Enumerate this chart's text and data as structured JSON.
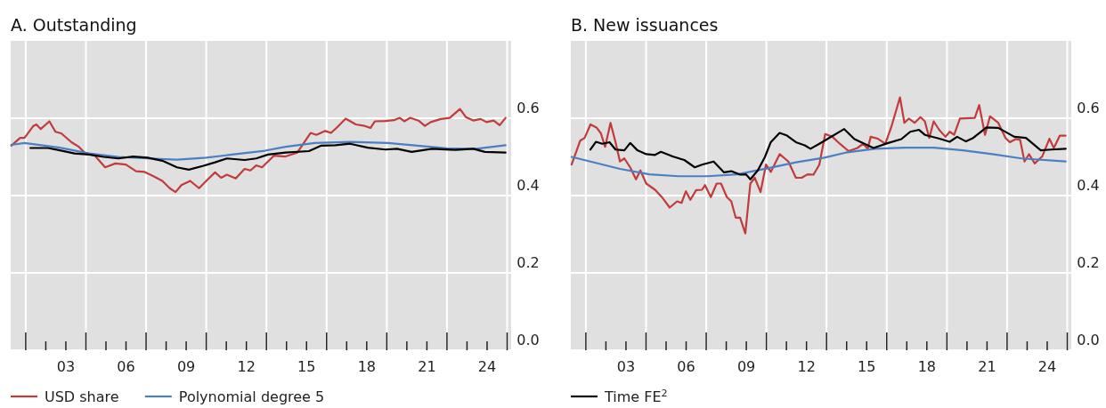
{
  "chart_data": [
    {
      "type": "line",
      "title": "A. Outstanding",
      "xlim": [
        2000.25,
        2025.2
      ],
      "ylim": [
        0,
        0.8
      ],
      "yticks": [
        {
          "value": 0,
          "label": "0.0"
        },
        0.2,
        0.4,
        0.6
      ],
      "grid": true,
      "legend": "bottom",
      "xticks": [
        {
          "value": 2001,
          "label": null
        },
        {
          "value": 2004,
          "label": null
        },
        {
          "value": 2007,
          "label": null
        },
        {
          "value": 2010,
          "label": null
        },
        {
          "value": 2013,
          "label": null
        },
        {
          "value": 2016,
          "label": null
        },
        {
          "value": 2019,
          "label": null
        },
        {
          "value": 2022,
          "label": null
        },
        {
          "value": 2025,
          "label": null
        },
        {
          "value": 2003,
          "label": "03"
        },
        {
          "value": 2006,
          "label": "06"
        },
        {
          "value": 2009,
          "label": "09"
        },
        {
          "value": 2012,
          "label": "12"
        },
        {
          "value": 2015,
          "label": "15"
        },
        {
          "value": 2018,
          "label": "18"
        },
        {
          "value": 2021,
          "label": "21"
        },
        {
          "value": 2024,
          "label": "24"
        }
      ],
      "series": [
        {
          "name": "USD share",
          "color": "#c23b3b",
          "x": [
            2000.28,
            2000.72,
            2000.94,
            2001.38,
            2001.53,
            2001.75,
            2002.18,
            2002.48,
            2002.77,
            2003.28,
            2003.65,
            2003.94,
            2004.45,
            2004.96,
            2005.47,
            2005.99,
            2006.5,
            2006.93,
            2007.37,
            2007.81,
            2008.18,
            2008.47,
            2008.76,
            2009.2,
            2009.64,
            2010,
            2010.44,
            2010.74,
            2011.03,
            2011.47,
            2011.91,
            2012.2,
            2012.49,
            2012.78,
            2013.37,
            2013.95,
            2014.54,
            2015.2,
            2015.49,
            2015.93,
            2016.22,
            2016.51,
            2016.95,
            2017.46,
            2017.9,
            2018.19,
            2018.41,
            2018.93,
            2019.36,
            2019.65,
            2019.87,
            2020.17,
            2020.61,
            2020.9,
            2021.19,
            2021.7,
            2022.14,
            2022.65,
            2022.94,
            2023.31,
            2023.68,
            2023.97,
            2024.33,
            2024.63,
            2024.92
          ],
          "values": [
            0.529,
            0.549,
            0.549,
            0.58,
            0.584,
            0.572,
            0.592,
            0.565,
            0.561,
            0.538,
            0.526,
            0.511,
            0.503,
            0.473,
            0.483,
            0.48,
            0.463,
            0.461,
            0.45,
            0.438,
            0.419,
            0.409,
            0.427,
            0.438,
            0.419,
            0.438,
            0.46,
            0.446,
            0.454,
            0.444,
            0.469,
            0.465,
            0.478,
            0.473,
            0.503,
            0.501,
            0.511,
            0.562,
            0.557,
            0.567,
            0.562,
            0.576,
            0.599,
            0.584,
            0.58,
            0.575,
            0.592,
            0.593,
            0.595,
            0.601,
            0.592,
            0.601,
            0.593,
            0.58,
            0.59,
            0.598,
            0.601,
            0.624,
            0.603,
            0.594,
            0.598,
            0.59,
            0.594,
            0.582,
            0.601
          ]
        },
        {
          "name": "Polynomial degree 5",
          "color": "#4a7fc4",
          "x": [
            2000.28,
            2000.94,
            2002.7,
            2004.16,
            2005.62,
            2007.08,
            2008.54,
            2010,
            2011.47,
            2012.93,
            2013.95,
            2015.41,
            2017.17,
            2019.07,
            2020.53,
            2021.99,
            2023.46,
            2024.92
          ],
          "values": [
            0.531,
            0.536,
            0.524,
            0.509,
            0.5,
            0.496,
            0.493,
            0.498,
            0.507,
            0.516,
            0.526,
            0.536,
            0.539,
            0.536,
            0.529,
            0.522,
            0.521,
            0.53
          ]
        },
        {
          "color": "#000000",
          "x": [
            2001.23,
            2002.11,
            2002.7,
            2003.43,
            2004.16,
            2004.89,
            2005.62,
            2006.35,
            2007.08,
            2007.81,
            2008.54,
            2009.13,
            2009.86,
            2010.44,
            2011.03,
            2011.91,
            2012.49,
            2013.08,
            2013.95,
            2015.12,
            2015.71,
            2016.44,
            2017.17,
            2018.05,
            2018.93,
            2019.51,
            2020.24,
            2021.26,
            2022.43,
            2023.31,
            2023.89,
            2024.92
          ],
          "values": [
            0.523,
            0.523,
            0.517,
            0.509,
            0.506,
            0.5,
            0.496,
            0.501,
            0.498,
            0.49,
            0.473,
            0.467,
            0.477,
            0.486,
            0.496,
            0.492,
            0.496,
            0.506,
            0.511,
            0.515,
            0.529,
            0.53,
            0.534,
            0.524,
            0.519,
            0.521,
            0.513,
            0.521,
            0.518,
            0.521,
            0.513,
            0.511
          ]
        }
      ]
    },
    {
      "type": "line",
      "title": "B. New issuances",
      "xlim": [
        2000.25,
        2025.2
      ],
      "ylim": [
        0,
        0.8
      ],
      "yticks": [
        {
          "value": 0,
          "label": "0.0"
        },
        0.2,
        0.4,
        0.6
      ],
      "grid": true,
      "legend": "bottom",
      "xticks": [
        {
          "value": 2001,
          "label": null
        },
        {
          "value": 2004,
          "label": null
        },
        {
          "value": 2007,
          "label": null
        },
        {
          "value": 2010,
          "label": null
        },
        {
          "value": 2013,
          "label": null
        },
        {
          "value": 2016,
          "label": null
        },
        {
          "value": 2019,
          "label": null
        },
        {
          "value": 2022,
          "label": null
        },
        {
          "value": 2025,
          "label": null
        },
        {
          "value": 2003,
          "label": "03"
        },
        {
          "value": 2006,
          "label": "06"
        },
        {
          "value": 2009,
          "label": "09"
        },
        {
          "value": 2012,
          "label": "12"
        },
        {
          "value": 2015,
          "label": "15"
        },
        {
          "value": 2018,
          "label": "18"
        },
        {
          "value": 2021,
          "label": "21"
        },
        {
          "value": 2024,
          "label": "24"
        }
      ],
      "series": [
        {
          "color": "#c23b3b",
          "x": [
            2000.29,
            2000.72,
            2000.94,
            2001.23,
            2001.53,
            2001.75,
            2001.96,
            2002.23,
            2002.48,
            2002.7,
            2002.92,
            2003.21,
            2003.5,
            2003.72,
            2004.01,
            2004.45,
            2004.82,
            2005.18,
            2005.55,
            2005.77,
            2005.99,
            2006.21,
            2006.5,
            2006.79,
            2006.94,
            2007.23,
            2007.52,
            2007.74,
            2008.03,
            2008.25,
            2008.47,
            2008.69,
            2008.95,
            2009.2,
            2009.42,
            2009.71,
            2009.98,
            2010.22,
            2010.66,
            2011.1,
            2011.47,
            2011.76,
            2012.05,
            2012.35,
            2012.64,
            2012.93,
            2013.29,
            2013.66,
            2014.1,
            2014.54,
            2014.83,
            2015.05,
            2015.2,
            2015.56,
            2015.93,
            2016.22,
            2016.66,
            2016.88,
            2017.1,
            2017.39,
            2017.68,
            2017.9,
            2018.12,
            2018.34,
            2018.63,
            2018.93,
            2019.14,
            2019.36,
            2019.65,
            2020.39,
            2020.61,
            2020.9,
            2021.15,
            2021.56,
            2021.92,
            2022.14,
            2022.43,
            2022.65,
            2022.87,
            2023.09,
            2023.38,
            2023.75,
            2024.11,
            2024.33,
            2024.63,
            2024.92
          ],
          "values": [
            0.48,
            0.542,
            0.549,
            0.584,
            0.576,
            0.561,
            0.526,
            0.588,
            0.538,
            0.488,
            0.496,
            0.473,
            0.442,
            0.465,
            0.431,
            0.415,
            0.394,
            0.369,
            0.385,
            0.381,
            0.411,
            0.389,
            0.414,
            0.415,
            0.427,
            0.396,
            0.431,
            0.431,
            0.396,
            0.385,
            0.343,
            0.343,
            0.302,
            0.431,
            0.446,
            0.409,
            0.48,
            0.461,
            0.507,
            0.488,
            0.446,
            0.446,
            0.455,
            0.454,
            0.48,
            0.559,
            0.552,
            0.534,
            0.515,
            0.523,
            0.534,
            0.521,
            0.552,
            0.547,
            0.534,
            0.576,
            0.654,
            0.588,
            0.599,
            0.588,
            0.603,
            0.592,
            0.549,
            0.592,
            0.569,
            0.552,
            0.565,
            0.557,
            0.599,
            0.601,
            0.634,
            0.557,
            0.605,
            0.588,
            0.549,
            0.538,
            0.546,
            0.544,
            0.488,
            0.507,
            0.483,
            0.501,
            0.547,
            0.523,
            0.555,
            0.555
          ]
        },
        {
          "color": "#4a7fc4",
          "x": [
            2000.29,
            2001.23,
            2002.7,
            2004.16,
            2005.62,
            2007.08,
            2008.54,
            2010,
            2011.47,
            2012.89,
            2013.95,
            2015.41,
            2016.88,
            2018.34,
            2019.8,
            2021.26,
            2022.72,
            2024.92
          ],
          "values": [
            0.5,
            0.488,
            0.469,
            0.455,
            0.45,
            0.45,
            0.455,
            0.47,
            0.486,
            0.498,
            0.511,
            0.521,
            0.524,
            0.524,
            0.517,
            0.507,
            0.496,
            0.488
          ]
        },
        {
          "name": "Time FE$^{2}$",
          "color": "#000000",
          "x": [
            2001.23,
            2001.5,
            2001.82,
            2002.18,
            2002.48,
            2002.92,
            2003.21,
            2003.57,
            2004.01,
            2004.45,
            2004.74,
            2005.33,
            2005.91,
            2006.43,
            2006.79,
            2007.37,
            2007.89,
            2008.25,
            2008.69,
            2008.98,
            2009.2,
            2009.57,
            2009.93,
            2010.22,
            2010.66,
            2011.03,
            2011.47,
            2011.91,
            2012.2,
            2012.64,
            2013.07,
            2013.88,
            2014.39,
            2015.34,
            2016.07,
            2016.73,
            2017.17,
            2017.61,
            2017.9,
            2018.63,
            2019.14,
            2019.51,
            2019.95,
            2020.31,
            2020.97,
            2021.56,
            2022.36,
            2022.94,
            2023.68,
            2024.19,
            2024.92
          ],
          "values": [
            0.519,
            0.539,
            0.534,
            0.538,
            0.519,
            0.517,
            0.536,
            0.517,
            0.507,
            0.505,
            0.513,
            0.501,
            0.492,
            0.473,
            0.48,
            0.488,
            0.46,
            0.463,
            0.454,
            0.455,
            0.442,
            0.465,
            0.5,
            0.538,
            0.562,
            0.555,
            0.538,
            0.53,
            0.521,
            0.534,
            0.547,
            0.572,
            0.546,
            0.523,
            0.536,
            0.546,
            0.565,
            0.57,
            0.557,
            0.547,
            0.539,
            0.552,
            0.54,
            0.549,
            0.576,
            0.575,
            0.552,
            0.549,
            0.517,
            0.519,
            0.521
          ]
        }
      ]
    }
  ]
}
